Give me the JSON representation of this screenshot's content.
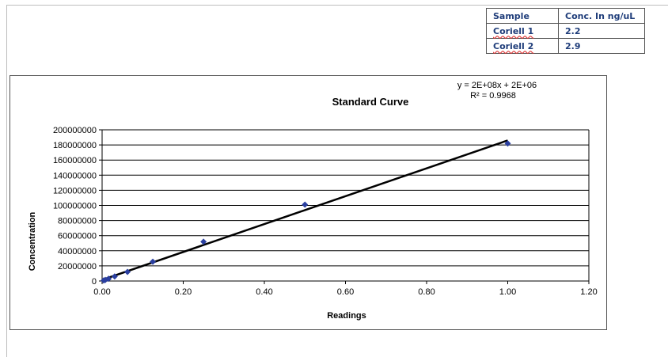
{
  "sample_table": {
    "headers": [
      "Sample",
      "Conc. In ng/uL"
    ],
    "rows": [
      [
        "Coriell 1",
        "2.2"
      ],
      [
        "Coriell 2",
        "2.9"
      ]
    ]
  },
  "chart_data": {
    "type": "scatter",
    "title": "Standard Curve",
    "xlabel": "Readings",
    "ylabel": "Concentration",
    "xlim": [
      0,
      1.2
    ],
    "ylim": [
      0,
      200000000
    ],
    "x_ticks": [
      "0.00",
      "0.20",
      "0.40",
      "0.60",
      "0.80",
      "1.00",
      "1.20"
    ],
    "y_ticks": [
      "0",
      "20000000",
      "40000000",
      "60000000",
      "80000000",
      "100000000",
      "120000000",
      "140000000",
      "160000000",
      "180000000",
      "200000000"
    ],
    "grid": "horizontal",
    "points": [
      {
        "x": 0.004,
        "y": 750000
      },
      {
        "x": 0.008,
        "y": 1500000
      },
      {
        "x": 0.016,
        "y": 3000000
      },
      {
        "x": 0.031,
        "y": 6000000
      },
      {
        "x": 0.0625,
        "y": 12000000
      },
      {
        "x": 0.125,
        "y": 25500000
      },
      {
        "x": 0.25,
        "y": 52000000
      },
      {
        "x": 0.5,
        "y": 101000000
      },
      {
        "x": 1.0,
        "y": 182000000
      }
    ],
    "trendline": {
      "x": [
        0,
        1.0
      ],
      "y": [
        1500000,
        186000000
      ]
    },
    "equation": "y = 2E+08x + 2E+06",
    "r_squared": "R² = 0.9968",
    "point_color": "#2a3fa0",
    "line_color": "#000000"
  }
}
